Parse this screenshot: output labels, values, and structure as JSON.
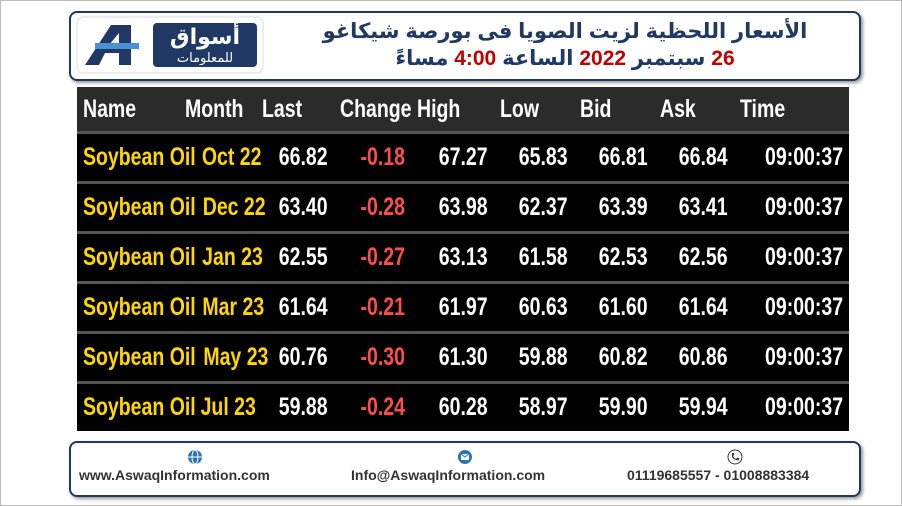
{
  "header": {
    "logo_name": "أسواق",
    "logo_sub": "للمعلومات",
    "title": "الأسعار اللحظية لزيت الصويا فى بورصة شيكاغو",
    "subtitle": {
      "day": "26",
      "month": "سبتمبر",
      "year": "2022",
      "time_label": "الساعة",
      "time": "4:00",
      "period": "مساءً"
    }
  },
  "table": {
    "columns": [
      "Name",
      "Month",
      "Last",
      "Change",
      "High",
      "Low",
      "Bid",
      "Ask",
      "Time"
    ],
    "rows": [
      [
        "Soybean Oil",
        "Oct 22",
        "66.82",
        "-0.18",
        "67.27",
        "65.83",
        "66.81",
        "66.84",
        "09:00:37"
      ],
      [
        "Soybean Oil",
        "Dec 22",
        "63.40",
        "-0.28",
        "63.98",
        "62.37",
        "63.39",
        "63.41",
        "09:00:37"
      ],
      [
        "Soybean Oil",
        "Jan 23",
        "62.55",
        "-0.27",
        "63.13",
        "61.58",
        "62.53",
        "62.56",
        "09:00:37"
      ],
      [
        "Soybean Oil",
        "Mar 23",
        "61.64",
        "-0.21",
        "61.97",
        "60.63",
        "61.60",
        "61.64",
        "09:00:37"
      ],
      [
        "Soybean Oil",
        "May 23",
        "60.76",
        "-0.30",
        "61.30",
        "59.88",
        "60.82",
        "60.86",
        "09:00:37"
      ],
      [
        "Soybean Oil",
        "Jul 23",
        "59.88",
        "-0.24",
        "60.28",
        "58.97",
        "59.90",
        "59.94",
        "09:00:37"
      ]
    ]
  },
  "footer": {
    "website": "www.AswaqInformation.com",
    "email": "Info@AswaqInformation.com",
    "phone": "01119685557 - 01008883384"
  }
}
